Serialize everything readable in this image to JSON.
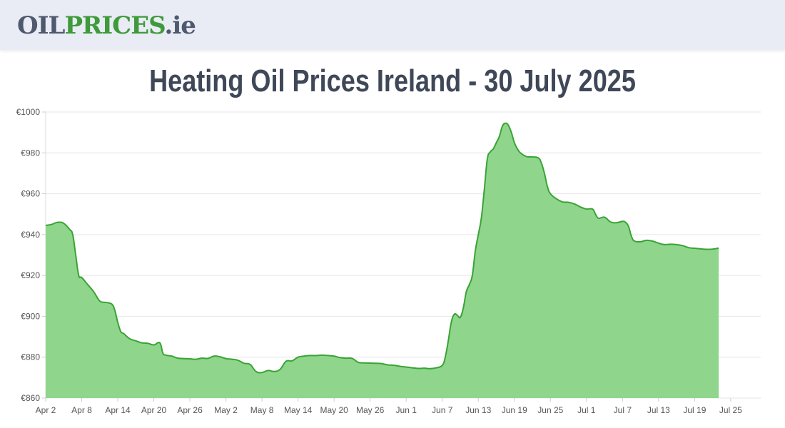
{
  "header": {
    "logo_part1": "OIL",
    "logo_part2": "PRICES",
    "logo_part3": ".ie"
  },
  "page_title": "Heating Oil Prices Ireland - 30 July 2025",
  "colors": {
    "line": "#3aa335",
    "fill": "#8fd68c",
    "grid": "#e6e6e6",
    "logo_dark": "#4e596e",
    "logo_green": "#3f9a3a"
  },
  "chart_data": {
    "type": "area",
    "title": "",
    "xlabel": "",
    "ylabel": "",
    "ylim": [
      860,
      1000
    ],
    "y_ticks": [
      "€860",
      "€880",
      "€900",
      "€920",
      "€940",
      "€960",
      "€980",
      "€1000"
    ],
    "y_tick_values": [
      860,
      880,
      900,
      920,
      940,
      960,
      980,
      1000
    ],
    "x_ticks": [
      "Apr 2",
      "Apr 8",
      "Apr 14",
      "Apr 20",
      "Apr 26",
      "May 2",
      "May 8",
      "May 14",
      "May 20",
      "May 26",
      "Jun 1",
      "Jun 7",
      "Jun 13",
      "Jun 19",
      "Jun 25",
      "Jul 1",
      "Jul 7",
      "Jul 13",
      "Jul 19",
      "Jul 25"
    ],
    "x_tick_days": [
      0,
      6,
      12,
      18,
      24,
      30,
      36,
      42,
      48,
      54,
      60,
      66,
      72,
      78,
      84,
      90,
      96,
      102,
      108,
      114
    ],
    "x_range": [
      0,
      119
    ],
    "grid": true,
    "legend": "none",
    "series": [
      {
        "points": [
          [
            0,
            944.5
          ],
          [
            1,
            945
          ],
          [
            2,
            946
          ],
          [
            3,
            945.5
          ],
          [
            4,
            942.5
          ],
          [
            4.5,
            940
          ],
          [
            5,
            930
          ],
          [
            5.5,
            920
          ],
          [
            6,
            919
          ],
          [
            7,
            915.5
          ],
          [
            8,
            912
          ],
          [
            9,
            907.5
          ],
          [
            10,
            906.8
          ],
          [
            11,
            906
          ],
          [
            11.5,
            903
          ],
          [
            12,
            897
          ],
          [
            12.5,
            892.5
          ],
          [
            13,
            891.5
          ],
          [
            14,
            889
          ],
          [
            15,
            888
          ],
          [
            16,
            887
          ],
          [
            17,
            886.8
          ],
          [
            18,
            886
          ],
          [
            19,
            887
          ],
          [
            19.5,
            882
          ],
          [
            20,
            881
          ],
          [
            21,
            880.5
          ],
          [
            22,
            879.5
          ],
          [
            23,
            879.3
          ],
          [
            24,
            879.2
          ],
          [
            25,
            879
          ],
          [
            26,
            879.5
          ],
          [
            27,
            879.4
          ],
          [
            28,
            880.5
          ],
          [
            29,
            880.2
          ],
          [
            30,
            879.3
          ],
          [
            31,
            879
          ],
          [
            32,
            878.5
          ],
          [
            33,
            877
          ],
          [
            34,
            876.5
          ],
          [
            35,
            873
          ],
          [
            36,
            872.5
          ],
          [
            37,
            873.5
          ],
          [
            38,
            873
          ],
          [
            39,
            874
          ],
          [
            40,
            878
          ],
          [
            41,
            878.2
          ],
          [
            42,
            880
          ],
          [
            43,
            880.5
          ],
          [
            44,
            880.8
          ],
          [
            45,
            880.8
          ],
          [
            46,
            881
          ],
          [
            47,
            880.8
          ],
          [
            48,
            880.5
          ],
          [
            49,
            879.8
          ],
          [
            50,
            879.5
          ],
          [
            51,
            879.4
          ],
          [
            52,
            877.5
          ],
          [
            53,
            877.2
          ],
          [
            54,
            877.1
          ],
          [
            55,
            877
          ],
          [
            56,
            876.8
          ],
          [
            57,
            876.2
          ],
          [
            58,
            876
          ],
          [
            59,
            875.5
          ],
          [
            60,
            875.2
          ],
          [
            61,
            874.8
          ],
          [
            62,
            874.5
          ],
          [
            63,
            874.6
          ],
          [
            64,
            874.4
          ],
          [
            65,
            874.8
          ],
          [
            66,
            876
          ],
          [
            66.5,
            880
          ],
          [
            67,
            888
          ],
          [
            67.5,
            897
          ],
          [
            68,
            901
          ],
          [
            68.5,
            900.5
          ],
          [
            69,
            899.5
          ],
          [
            69.5,
            904
          ],
          [
            70,
            912
          ],
          [
            70.5,
            915.5
          ],
          [
            71,
            920
          ],
          [
            71.5,
            932
          ],
          [
            72,
            940
          ],
          [
            72.5,
            948
          ],
          [
            73,
            962
          ],
          [
            73.5,
            977
          ],
          [
            74,
            980.5
          ],
          [
            74.5,
            982
          ],
          [
            75,
            985
          ],
          [
            75.5,
            988
          ],
          [
            76,
            993
          ],
          [
            76.5,
            994.5
          ],
          [
            77,
            993.5
          ],
          [
            77.5,
            990
          ],
          [
            78,
            985
          ],
          [
            78.5,
            982
          ],
          [
            79,
            980
          ],
          [
            80,
            978.2
          ],
          [
            81,
            978
          ],
          [
            82,
            977.5
          ],
          [
            82.5,
            975
          ],
          [
            83,
            970
          ],
          [
            83.5,
            963.5
          ],
          [
            84,
            960
          ],
          [
            85,
            957.5
          ],
          [
            86,
            956
          ],
          [
            87,
            955.8
          ],
          [
            88,
            955
          ],
          [
            89,
            953.5
          ],
          [
            90,
            952.5
          ],
          [
            91,
            952.5
          ],
          [
            91.5,
            950
          ],
          [
            92,
            948
          ],
          [
            93,
            948.5
          ],
          [
            94,
            946.2
          ],
          [
            95,
            945.8
          ],
          [
            96,
            946.5
          ],
          [
            96.5,
            946
          ],
          [
            97,
            944
          ],
          [
            97.5,
            939
          ],
          [
            98,
            936.8
          ],
          [
            99,
            936.5
          ],
          [
            100,
            937.2
          ],
          [
            101,
            936.8
          ],
          [
            102,
            935.8
          ],
          [
            103,
            935.1
          ],
          [
            104,
            935.3
          ],
          [
            105,
            935.1
          ],
          [
            106,
            934.6
          ],
          [
            107,
            933.6
          ],
          [
            108,
            933.3
          ],
          [
            109,
            933
          ],
          [
            110,
            932.8
          ],
          [
            111,
            932.9
          ],
          [
            112,
            933.4
          ]
        ]
      }
    ]
  }
}
